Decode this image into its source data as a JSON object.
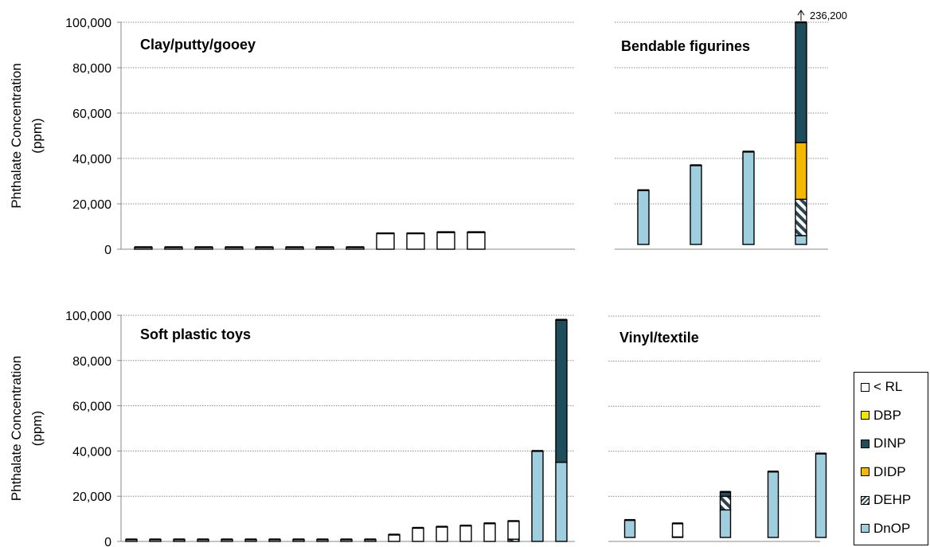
{
  "chart_data": [
    {
      "type": "bar",
      "stacked": true,
      "title": "Clay/putty/gooey",
      "ylabel_line1": "Phthalate Concentration",
      "ylabel_line2": "(ppm)",
      "ylim": [
        0,
        100000
      ],
      "yticks": [
        "0",
        "20,000",
        "40,000",
        "60,000",
        "80,000",
        "100,000"
      ],
      "grid": true,
      "bars": [
        {
          "DnOP": 0,
          "DEHP": 0,
          "DIDP": 0,
          "DINP": 0,
          "DBP": 0,
          "RL": 200
        },
        {
          "DnOP": 0,
          "DEHP": 0,
          "DIDP": 0,
          "DINP": 0,
          "DBP": 0,
          "RL": 200
        },
        {
          "DnOP": 0,
          "DEHP": 0,
          "DIDP": 0,
          "DINP": 0,
          "DBP": 0,
          "RL": 200
        },
        {
          "DnOP": 0,
          "DEHP": 0,
          "DIDP": 0,
          "DINP": 0,
          "DBP": 0,
          "RL": 200
        },
        {
          "DnOP": 0,
          "DEHP": 0,
          "DIDP": 0,
          "DINP": 0,
          "DBP": 0,
          "RL": 200
        },
        {
          "DnOP": 0,
          "DEHP": 0,
          "DIDP": 0,
          "DINP": 0,
          "DBP": 0,
          "RL": 200
        },
        {
          "DnOP": 0,
          "DEHP": 0,
          "DIDP": 0,
          "DINP": 0,
          "DBP": 0,
          "RL": 200
        },
        {
          "DnOP": 0,
          "DEHP": 0,
          "DIDP": 0,
          "DINP": 0,
          "DBP": 0,
          "RL": 200
        },
        {
          "DnOP": 0,
          "DEHP": 0,
          "DIDP": 0,
          "DINP": 0,
          "DBP": 0,
          "RL": 7000
        },
        {
          "DnOP": 0,
          "DEHP": 0,
          "DIDP": 0,
          "DINP": 0,
          "DBP": 0,
          "RL": 7000
        },
        {
          "DnOP": 0,
          "DEHP": 0,
          "DIDP": 0,
          "DINP": 0,
          "DBP": 0,
          "RL": 7500
        },
        {
          "DnOP": 0,
          "DEHP": 0,
          "DIDP": 0,
          "DINP": 0,
          "DBP": 0,
          "RL": 7500
        }
      ]
    },
    {
      "type": "bar",
      "stacked": true,
      "title": "Bendable figurines",
      "ylim": [
        0,
        100000
      ],
      "grid": true,
      "annotation": "236,200",
      "bars": [
        {
          "DnOP": 26000,
          "DEHP": 0,
          "DIDP": 0,
          "DINP": 0,
          "DBP": 0,
          "RL": 0
        },
        {
          "DnOP": 37000,
          "DEHP": 0,
          "DIDP": 0,
          "DINP": 0,
          "DBP": 0,
          "RL": 0
        },
        {
          "DnOP": 43000,
          "DEHP": 0,
          "DIDP": 0,
          "DINP": 0,
          "DBP": 0,
          "RL": 0
        },
        {
          "DnOP": 6000,
          "DEHP": 16000,
          "DIDP": 25000,
          "DINP": 189200,
          "DBP": 0,
          "RL": 0
        }
      ]
    },
    {
      "type": "bar",
      "stacked": true,
      "title": "Soft plastic toys",
      "ylabel_line1": "Phthalate Concentration",
      "ylabel_line2": "(ppm)",
      "ylim": [
        0,
        100000
      ],
      "yticks": [
        "0",
        "20,000",
        "40,000",
        "60,000",
        "80,000",
        "100,000"
      ],
      "grid": true,
      "bars": [
        {
          "DnOP": 0,
          "DEHP": 0,
          "DIDP": 0,
          "DINP": 0,
          "DBP": 0,
          "RL": 200
        },
        {
          "DnOP": 0,
          "DEHP": 0,
          "DIDP": 0,
          "DINP": 0,
          "DBP": 0,
          "RL": 200
        },
        {
          "DnOP": 0,
          "DEHP": 0,
          "DIDP": 0,
          "DINP": 0,
          "DBP": 0,
          "RL": 200
        },
        {
          "DnOP": 0,
          "DEHP": 0,
          "DIDP": 0,
          "DINP": 0,
          "DBP": 0,
          "RL": 200
        },
        {
          "DnOP": 0,
          "DEHP": 0,
          "DIDP": 0,
          "DINP": 0,
          "DBP": 0,
          "RL": 200
        },
        {
          "DnOP": 0,
          "DEHP": 0,
          "DIDP": 0,
          "DINP": 0,
          "DBP": 0,
          "RL": 200
        },
        {
          "DnOP": 0,
          "DEHP": 0,
          "DIDP": 0,
          "DINP": 0,
          "DBP": 0,
          "RL": 200
        },
        {
          "DnOP": 0,
          "DEHP": 0,
          "DIDP": 0,
          "DINP": 0,
          "DBP": 0,
          "RL": 200
        },
        {
          "DnOP": 0,
          "DEHP": 0,
          "DIDP": 0,
          "DINP": 0,
          "DBP": 0,
          "RL": 200
        },
        {
          "DnOP": 0,
          "DEHP": 0,
          "DIDP": 0,
          "DINP": 0,
          "DBP": 0,
          "RL": 200
        },
        {
          "DnOP": 0,
          "DEHP": 0,
          "DIDP": 0,
          "DINP": 0,
          "DBP": 0,
          "RL": 200
        },
        {
          "DnOP": 0,
          "DEHP": 0,
          "DIDP": 0,
          "DINP": 0,
          "DBP": 0,
          "RL": 3000
        },
        {
          "DnOP": 0,
          "DEHP": 0,
          "DIDP": 0,
          "DINP": 0,
          "DBP": 0,
          "RL": 6000
        },
        {
          "DnOP": 0,
          "DEHP": 0,
          "DIDP": 0,
          "DINP": 0,
          "DBP": 0,
          "RL": 6500
        },
        {
          "DnOP": 0,
          "DEHP": 0,
          "DIDP": 0,
          "DINP": 0,
          "DBP": 0,
          "RL": 7000
        },
        {
          "DnOP": 0,
          "DEHP": 0,
          "DIDP": 0,
          "DINP": 0,
          "DBP": 0,
          "RL": 8000
        },
        {
          "DnOP": 0,
          "DEHP": 1000,
          "DIDP": 0,
          "DINP": 0,
          "DBP": 0,
          "RL": 8000
        },
        {
          "DnOP": 40000,
          "DEHP": 0,
          "DIDP": 0,
          "DINP": 0,
          "DBP": 0,
          "RL": 0
        },
        {
          "DnOP": 35000,
          "DEHP": 0,
          "DIDP": 0,
          "DINP": 63000,
          "DBP": 0,
          "RL": 0
        }
      ]
    },
    {
      "type": "bar",
      "stacked": true,
      "title": "Vinyl/textile",
      "ylim": [
        0,
        100000
      ],
      "grid": true,
      "bars": [
        {
          "DnOP": 9500,
          "DEHP": 0,
          "DIDP": 0,
          "DINP": 0,
          "DBP": 0,
          "RL": 0
        },
        {
          "DnOP": 2000,
          "DEHP": 0,
          "DIDP": 0,
          "DINP": 0,
          "DBP": 0,
          "RL": 6000
        },
        {
          "DnOP": 14000,
          "DEHP": 6000,
          "DIDP": 0,
          "DINP": 2000,
          "DBP": 0,
          "RL": 0
        },
        {
          "DnOP": 31000,
          "DEHP": 0,
          "DIDP": 0,
          "DINP": 0,
          "DBP": 0,
          "RL": 0
        },
        {
          "DnOP": 39000,
          "DEHP": 0,
          "DIDP": 0,
          "DINP": 0,
          "DBP": 0,
          "RL": 0
        }
      ]
    }
  ],
  "legend": [
    {
      "key": "RL",
      "label": "< RL",
      "color": "#ffffff"
    },
    {
      "key": "DBP",
      "label": "DBP",
      "color": "#f2e500"
    },
    {
      "key": "DINP",
      "label": "DINP",
      "color": "#1e4d5c"
    },
    {
      "key": "DIDP",
      "label": "DIDP",
      "color": "#f5b800"
    },
    {
      "key": "DEHP",
      "label": "DEHP",
      "color": "hatch"
    },
    {
      "key": "DnOP",
      "label": "DnOP",
      "color": "#9fcfdf"
    }
  ]
}
